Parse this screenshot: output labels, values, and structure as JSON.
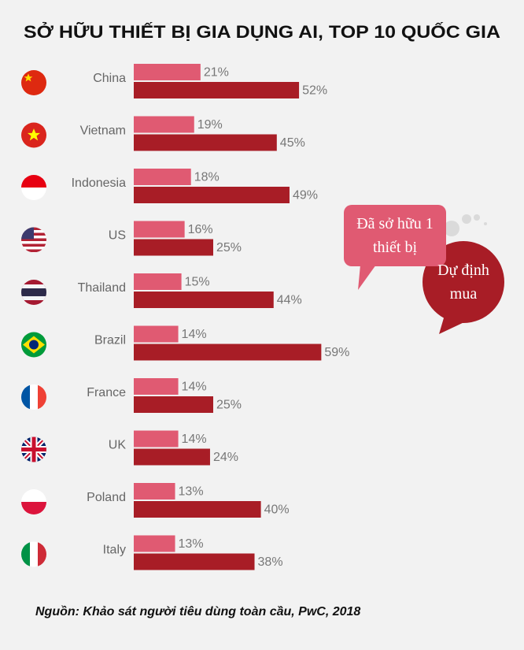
{
  "chart_data": {
    "type": "bar",
    "orientation": "horizontal",
    "title": "SỞ HỮU THIẾT BỊ GIA DỤNG AI, TOP 10 QUỐC GIA",
    "categories": [
      "China",
      "Vietnam",
      "Indonesia",
      "US",
      "Thailand",
      "Brazil",
      "France",
      "UK",
      "Poland",
      "Italy"
    ],
    "series": [
      {
        "name": "Đã sở hữu 1 thiết bị",
        "color": "#e05a72",
        "values": [
          21,
          19,
          18,
          16,
          15,
          14,
          14,
          14,
          13,
          13
        ],
        "value_labels": [
          "21%",
          "19%",
          "18%",
          "16%",
          "15%",
          "14%",
          "14%",
          "14%",
          "13%",
          "13%"
        ]
      },
      {
        "name": "Dự định mua",
        "color": "#a81d26",
        "values": [
          52,
          45,
          49,
          25,
          44,
          59,
          25,
          24,
          40,
          38
        ],
        "value_labels": [
          "52%",
          "45%",
          "49%",
          "25%",
          "44%",
          "59%",
          "25%",
          "24%",
          "40%",
          "38%"
        ]
      }
    ],
    "source": "Nguồn: Khảo sát người tiêu dùng toàn cầu, PwC, 2018"
  }
}
